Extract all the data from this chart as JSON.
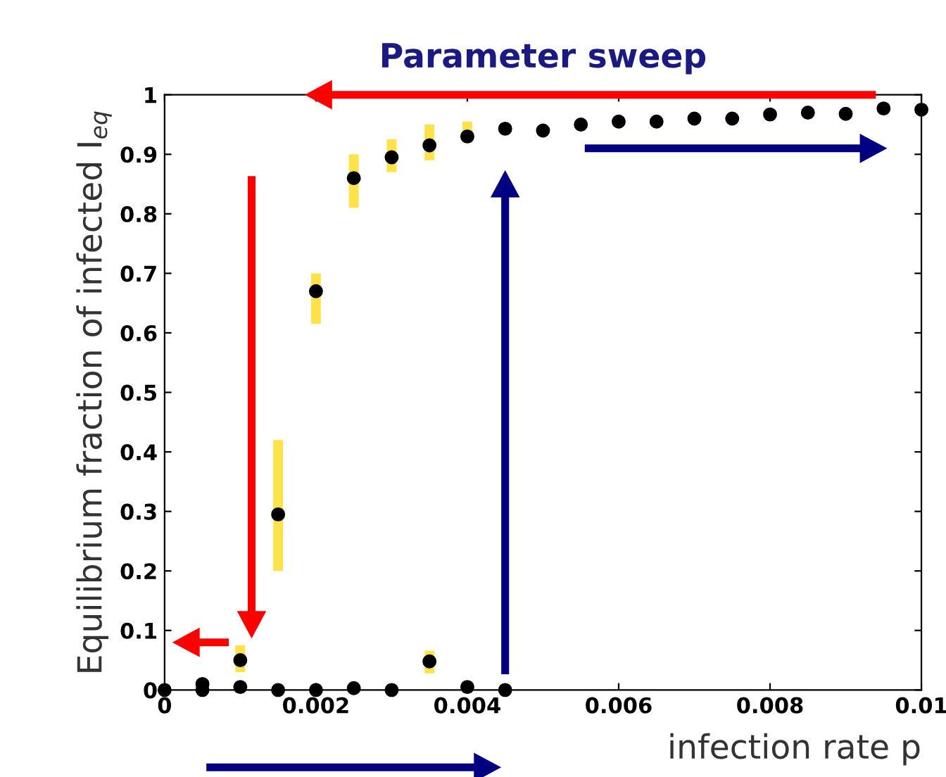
{
  "chart_data": {
    "type": "scatter",
    "title": "Parameter sweep",
    "xlabel": "infection rate p",
    "ylabel": "Equilibrium fraction of infected I$_{eq}$",
    "series": [
      {
        "color": "#000000",
        "x": [
          0,
          0.0005,
          0.0005,
          0.001,
          0.0015,
          0.002,
          0.0025,
          0.003,
          0.0035,
          0.004,
          0.0045,
          0.001,
          0.0015,
          0.002,
          0.0025,
          0.003,
          0.0035,
          0.004,
          0.0045,
          0.005,
          0.0055,
          0.006,
          0.0065,
          0.007,
          0.0075,
          0.008,
          0.0085,
          0.009,
          0.0095,
          0.01
        ],
        "values": [
          0,
          0.01,
          0,
          0.005,
          0,
          0,
          0.003,
          0,
          0.048,
          0.005,
          0,
          0.05,
          0.295,
          0.67,
          0.86,
          0.895,
          0.915,
          0.93,
          0.943,
          0.94,
          0.95,
          0.955,
          0.955,
          0.96,
          0.96,
          0.967,
          0.97,
          0.968,
          0.977,
          0.975
        ],
        "errors": [
          null,
          null,
          null,
          null,
          null,
          null,
          null,
          null,
          [
            0.028,
            0.066
          ],
          null,
          null,
          [
            0.03,
            0.075
          ],
          [
            0.2,
            0.42
          ],
          [
            0.615,
            0.7
          ],
          [
            0.81,
            0.9
          ],
          [
            0.87,
            0.925
          ],
          [
            0.89,
            0.95
          ],
          [
            0.92,
            0.955
          ],
          null,
          null,
          null,
          null,
          null,
          null,
          null,
          null,
          null,
          null,
          null,
          null
        ]
      }
    ],
    "xlim": [
      0,
      0.01
    ],
    "ylim": [
      0,
      1
    ],
    "xticks": [
      0,
      0.002,
      0.004,
      0.006,
      0.008,
      0.01
    ],
    "yticks": [
      0,
      0.1,
      0.2,
      0.3,
      0.4,
      0.5,
      0.6,
      0.7,
      0.8,
      0.9,
      1
    ],
    "marker": "circle",
    "grid": false,
    "legend": false
  }
}
